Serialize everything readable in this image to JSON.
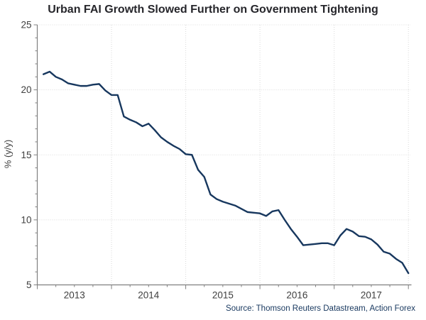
{
  "page": {
    "background": "#FFFFFF"
  },
  "chart_data": {
    "type": "line",
    "title": "Urban FAI Growth Slowed Further on Government Tightening",
    "ylabel": "% (y/y)",
    "source_note": "Source: Thomson Reuters Datastream, Action Forex",
    "legend_position": "none",
    "grid": "dotted",
    "ylim": [
      5,
      25
    ],
    "y_major_ticks": [
      5,
      10,
      15,
      20,
      25
    ],
    "y_tick_labels": [
      "5",
      "10",
      "15",
      "20",
      "25"
    ],
    "y_minor_tick_step": 1,
    "x_tick_labels": [
      "2013",
      "2014",
      "2015",
      "2016",
      "2017"
    ],
    "x_year_boundary_months": [
      0,
      12,
      24,
      36,
      48,
      60
    ],
    "x_minor_tick_step_months": 3,
    "xlim_months": [
      0,
      60.6
    ],
    "series": [
      {
        "name": "Urban FAI growth",
        "frequency": "monthly",
        "start_month": "2013-02",
        "end_month": "2018-01",
        "values": [
          21.2,
          21.4,
          21.0,
          20.8,
          20.5,
          20.4,
          20.3,
          20.3,
          20.4,
          20.45,
          19.95,
          19.6,
          19.6,
          17.95,
          17.7,
          17.5,
          17.2,
          17.4,
          16.9,
          16.35,
          16.0,
          15.7,
          15.45,
          15.05,
          15.0,
          13.85,
          13.3,
          11.95,
          11.6,
          11.4,
          11.25,
          11.1,
          10.85,
          10.6,
          10.55,
          10.5,
          10.3,
          10.65,
          10.75,
          10.0,
          9.3,
          8.7,
          8.05,
          8.1,
          8.15,
          8.2,
          8.2,
          8.05,
          8.8,
          9.3,
          9.1,
          8.75,
          8.7,
          8.5,
          8.1,
          7.55,
          7.4,
          7.0,
          6.7,
          5.9
        ]
      }
    ],
    "colors": {
      "line": "#17375E",
      "title": "#26262B",
      "source": "#17375E",
      "axis": "#808080",
      "gridline": "#D9D9D9",
      "tick_label": "#3F3F3F"
    }
  }
}
